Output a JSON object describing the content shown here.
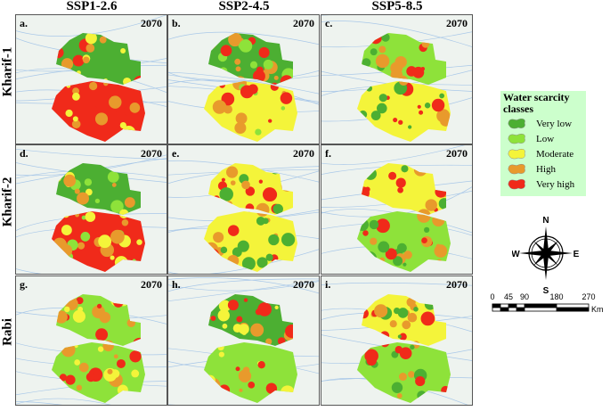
{
  "columns": [
    "SSP1-2.6",
    "SSP2-4.5",
    "SSP5-8.5"
  ],
  "rows": [
    "Kharif-1",
    "Kharif-2",
    "Rabi"
  ],
  "panels": [
    {
      "label": "a.",
      "year": "2070"
    },
    {
      "label": "b.",
      "year": "2070"
    },
    {
      "label": "c.",
      "year": "2070"
    },
    {
      "label": "d.",
      "year": "2070"
    },
    {
      "label": "e.",
      "year": "2070"
    },
    {
      "label": "f.",
      "year": "2070"
    },
    {
      "label": "g.",
      "year": "2070"
    },
    {
      "label": "h.",
      "year": "2070"
    },
    {
      "label": "i.",
      "year": "2070"
    }
  ],
  "legend": {
    "title": "Water scarcity classes",
    "classes": [
      {
        "label": "Very low",
        "color": "#4caf32"
      },
      {
        "label": "Low",
        "color": "#8ee23a"
      },
      {
        "label": "Moderate",
        "color": "#f4f43a"
      },
      {
        "label": "High",
        "color": "#e89a2c"
      },
      {
        "label": "Very high",
        "color": "#f02a1a"
      }
    ]
  },
  "compass": {
    "n": "N",
    "s": "S",
    "e": "E",
    "w": "W"
  },
  "scale_bar": {
    "ticks": [
      "0",
      "45",
      "90",
      "180",
      "270"
    ],
    "unit": "Km"
  }
}
